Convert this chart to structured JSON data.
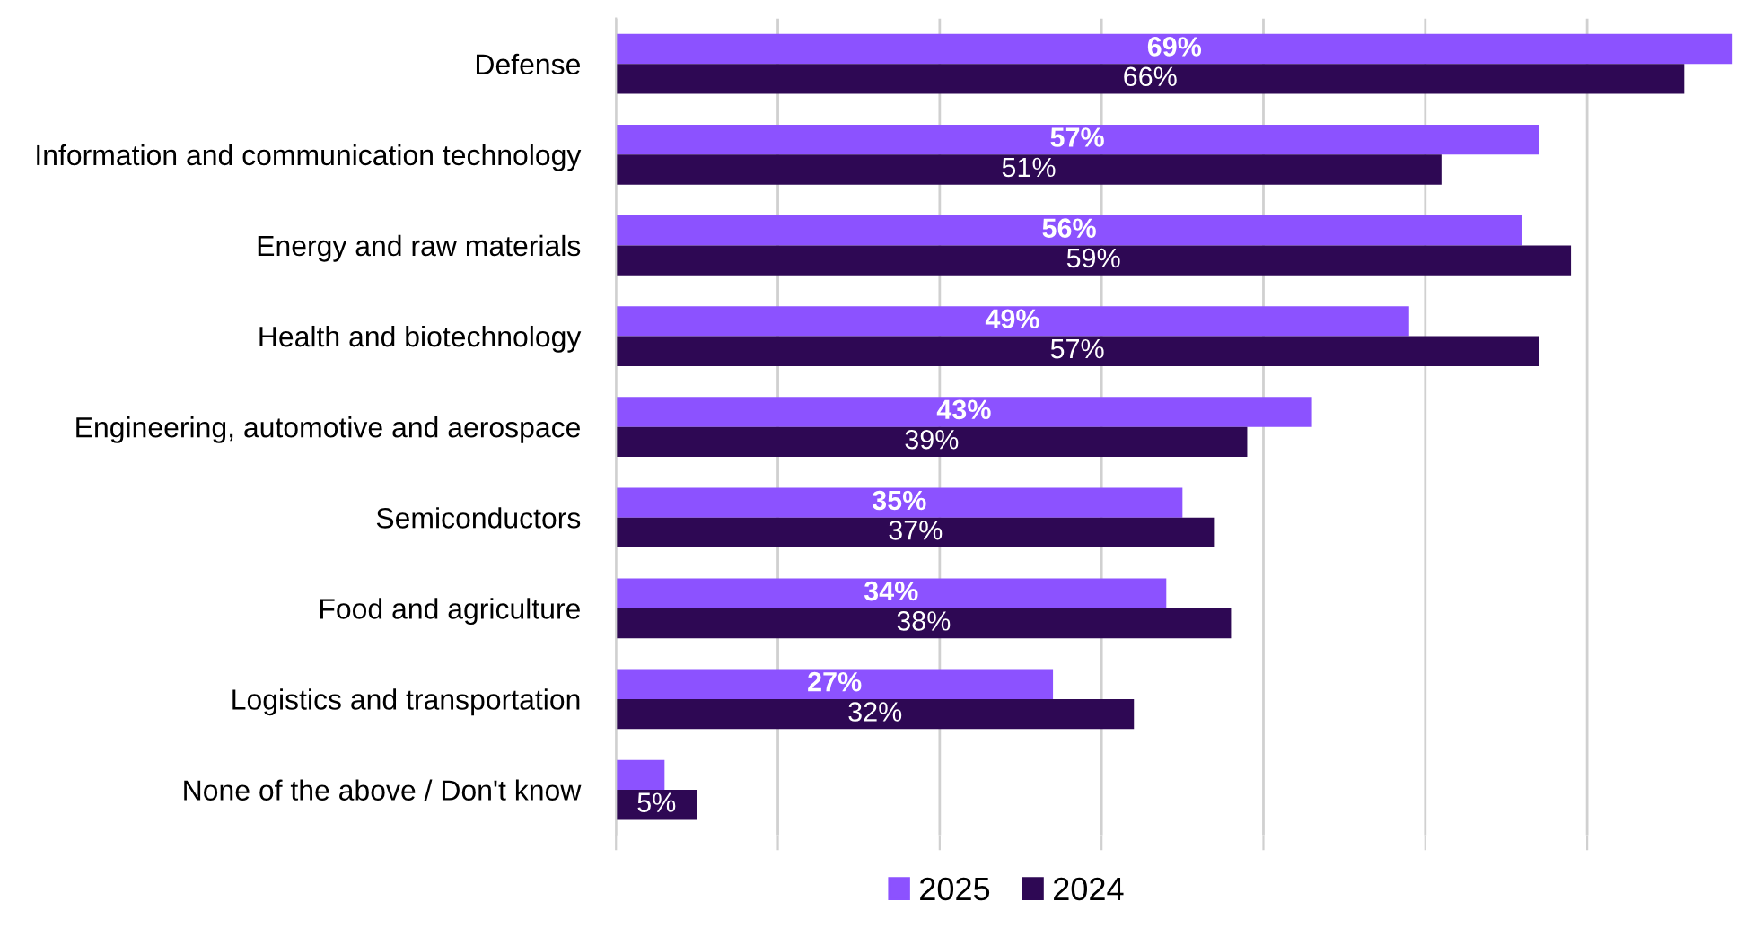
{
  "chart_data": {
    "type": "bar",
    "orientation": "horizontal",
    "categories": [
      "Defense",
      "Information and communication technology",
      "Energy and raw materials",
      "Health and biotechnology",
      "Engineering, automotive and aerospace",
      "Semiconductors",
      "Food and agriculture",
      "Logistics and transportation",
      "None of the above / Don't know"
    ],
    "series": [
      {
        "name": "2025",
        "color": "#8c52ff",
        "values": [
          69,
          57,
          56,
          49,
          43,
          35,
          34,
          27,
          3
        ],
        "value_labels": [
          "69%",
          "57%",
          "56%",
          "49%",
          "43%",
          "35%",
          "34%",
          "27%",
          null
        ]
      },
      {
        "name": "2024",
        "color": "#2e0854",
        "values": [
          66,
          51,
          59,
          57,
          39,
          37,
          38,
          32,
          5
        ],
        "value_labels": [
          "66%",
          "51%",
          "59%",
          "57%",
          "39%",
          "37%",
          "38%",
          "32%",
          "5%"
        ]
      }
    ],
    "xlim": [
      0,
      69
    ],
    "xticks": [
      {
        "value": 0,
        "label": null
      },
      {
        "value": 10,
        "label": null
      },
      {
        "value": 20,
        "label": null
      },
      {
        "value": 30,
        "label": null
      },
      {
        "value": 40,
        "label": null
      },
      {
        "value": 50,
        "label": null
      },
      {
        "value": 60,
        "label": null
      }
    ],
    "grid": "x",
    "legend": "bottom",
    "tick_labels": "y"
  }
}
